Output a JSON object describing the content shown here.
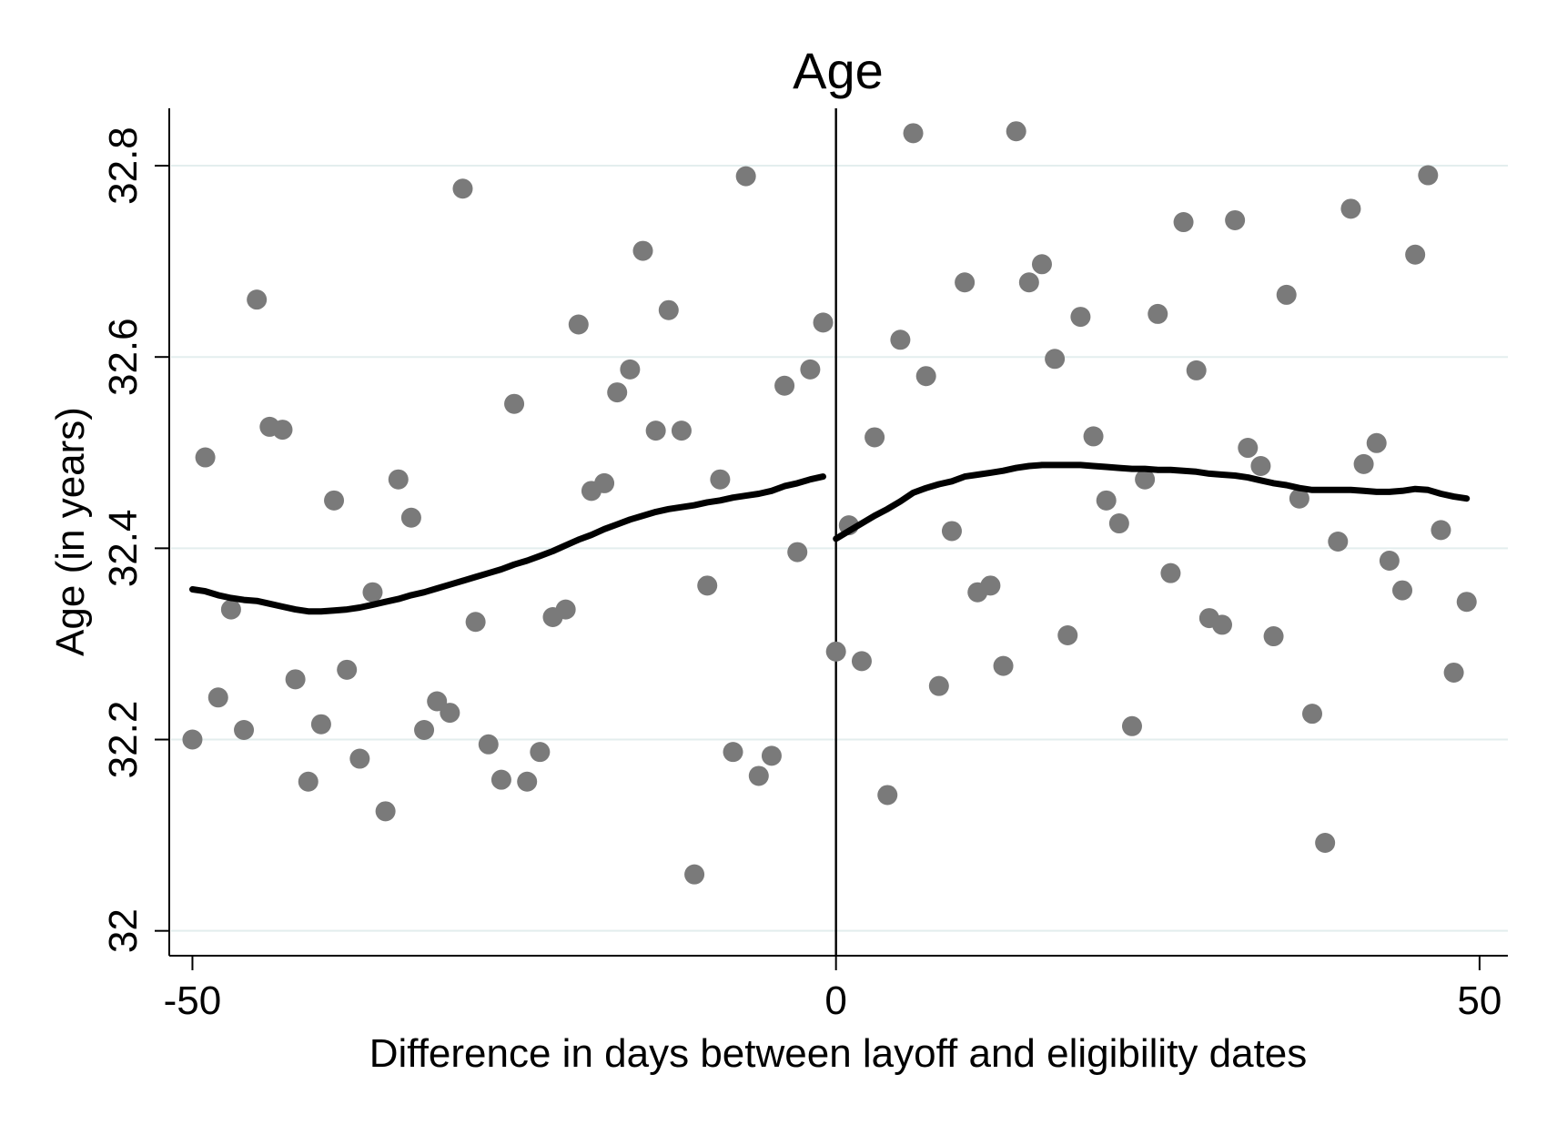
{
  "chart_data": {
    "type": "scatter",
    "title": "Age",
    "xlabel": "Difference in days between layoff and eligibility dates",
    "ylabel": "Age (in years)",
    "xlim": [
      -51.8,
      52.2
    ],
    "ylim": [
      31.974,
      32.86
    ],
    "x_ticks": [
      -50,
      0,
      50
    ],
    "x_tick_labels": [
      "-50",
      "0",
      "50"
    ],
    "y_ticks": [
      32.0,
      32.2,
      32.4,
      32.6,
      32.8
    ],
    "y_tick_labels": [
      "32",
      "32.2",
      "32.4",
      "32.6",
      "32.8"
    ],
    "grid": true,
    "cutoff_x": 0,
    "points": [
      {
        "x": -50,
        "y": 32.2
      },
      {
        "x": -49,
        "y": 32.495
      },
      {
        "x": -48,
        "y": 32.244
      },
      {
        "x": -47,
        "y": 32.336
      },
      {
        "x": -46,
        "y": 32.21
      },
      {
        "x": -45,
        "y": 32.66
      },
      {
        "x": -44,
        "y": 32.527
      },
      {
        "x": -43,
        "y": 32.524
      },
      {
        "x": -42,
        "y": 32.263
      },
      {
        "x": -41,
        "y": 32.156
      },
      {
        "x": -40,
        "y": 32.216
      },
      {
        "x": -39,
        "y": 32.45
      },
      {
        "x": -38,
        "y": 32.273
      },
      {
        "x": -37,
        "y": 32.18
      },
      {
        "x": -36,
        "y": 32.354
      },
      {
        "x": -35,
        "y": 32.125
      },
      {
        "x": -34,
        "y": 32.472
      },
      {
        "x": -33,
        "y": 32.432
      },
      {
        "x": -32,
        "y": 32.21
      },
      {
        "x": -31,
        "y": 32.24
      },
      {
        "x": -30,
        "y": 32.228
      },
      {
        "x": -29,
        "y": 32.776
      },
      {
        "x": -28,
        "y": 32.323
      },
      {
        "x": -27,
        "y": 32.195
      },
      {
        "x": -26,
        "y": 32.158
      },
      {
        "x": -25,
        "y": 32.551
      },
      {
        "x": -24,
        "y": 32.156
      },
      {
        "x": -23,
        "y": 32.187
      },
      {
        "x": -22,
        "y": 32.328
      },
      {
        "x": -21,
        "y": 32.336
      },
      {
        "x": -20,
        "y": 32.634
      },
      {
        "x": -19,
        "y": 32.46
      },
      {
        "x": -18,
        "y": 32.468
      },
      {
        "x": -17,
        "y": 32.563
      },
      {
        "x": -16,
        "y": 32.587
      },
      {
        "x": -15,
        "y": 32.711
      },
      {
        "x": -14,
        "y": 32.523
      },
      {
        "x": -13,
        "y": 32.649
      },
      {
        "x": -12,
        "y": 32.523
      },
      {
        "x": -11,
        "y": 32.059
      },
      {
        "x": -10,
        "y": 32.361
      },
      {
        "x": -9,
        "y": 32.472
      },
      {
        "x": -8,
        "y": 32.187
      },
      {
        "x": -7,
        "y": 32.789
      },
      {
        "x": -6,
        "y": 32.162
      },
      {
        "x": -5,
        "y": 32.183
      },
      {
        "x": -4,
        "y": 32.57
      },
      {
        "x": -3,
        "y": 32.396
      },
      {
        "x": -2,
        "y": 32.587
      },
      {
        "x": -1,
        "y": 32.636
      },
      {
        "x": 0,
        "y": 32.292
      },
      {
        "x": 1,
        "y": 32.424
      },
      {
        "x": 2,
        "y": 32.282
      },
      {
        "x": 3,
        "y": 32.516
      },
      {
        "x": 4,
        "y": 32.142
      },
      {
        "x": 5,
        "y": 32.618
      },
      {
        "x": 6,
        "y": 32.834
      },
      {
        "x": 7,
        "y": 32.58
      },
      {
        "x": 8,
        "y": 32.256
      },
      {
        "x": 9,
        "y": 32.418
      },
      {
        "x": 10,
        "y": 32.678
      },
      {
        "x": 11,
        "y": 32.354
      },
      {
        "x": 12,
        "y": 32.361
      },
      {
        "x": 13,
        "y": 32.277
      },
      {
        "x": 14,
        "y": 32.836
      },
      {
        "x": 15,
        "y": 32.678
      },
      {
        "x": 16,
        "y": 32.697
      },
      {
        "x": 17,
        "y": 32.598
      },
      {
        "x": 18,
        "y": 32.309
      },
      {
        "x": 19,
        "y": 32.642
      },
      {
        "x": 20,
        "y": 32.517
      },
      {
        "x": 21,
        "y": 32.45
      },
      {
        "x": 22,
        "y": 32.426
      },
      {
        "x": 23,
        "y": 32.214
      },
      {
        "x": 24,
        "y": 32.472
      },
      {
        "x": 25,
        "y": 32.645
      },
      {
        "x": 26,
        "y": 32.374
      },
      {
        "x": 27,
        "y": 32.741
      },
      {
        "x": 28,
        "y": 32.586
      },
      {
        "x": 29,
        "y": 32.327
      },
      {
        "x": 30,
        "y": 32.32
      },
      {
        "x": 31,
        "y": 32.743
      },
      {
        "x": 32,
        "y": 32.505
      },
      {
        "x": 33,
        "y": 32.486
      },
      {
        "x": 34,
        "y": 32.308
      },
      {
        "x": 35,
        "y": 32.665
      },
      {
        "x": 36,
        "y": 32.452
      },
      {
        "x": 37,
        "y": 32.227
      },
      {
        "x": 38,
        "y": 32.092
      },
      {
        "x": 39,
        "y": 32.407
      },
      {
        "x": 40,
        "y": 32.755
      },
      {
        "x": 41,
        "y": 32.488
      },
      {
        "x": 42,
        "y": 32.51
      },
      {
        "x": 43,
        "y": 32.387
      },
      {
        "x": 44,
        "y": 32.356
      },
      {
        "x": 45,
        "y": 32.707
      },
      {
        "x": 46,
        "y": 32.79
      },
      {
        "x": 47,
        "y": 32.419
      },
      {
        "x": 48,
        "y": 32.27
      },
      {
        "x": 49,
        "y": 32.344
      }
    ],
    "fit_left": [
      {
        "x": -50,
        "y": 32.357
      },
      {
        "x": -49,
        "y": 32.355
      },
      {
        "x": -48,
        "y": 32.351
      },
      {
        "x": -47,
        "y": 32.348
      },
      {
        "x": -46,
        "y": 32.346
      },
      {
        "x": -45,
        "y": 32.345
      },
      {
        "x": -44,
        "y": 32.342
      },
      {
        "x": -43,
        "y": 32.339
      },
      {
        "x": -42,
        "y": 32.336
      },
      {
        "x": -41,
        "y": 32.334
      },
      {
        "x": -40,
        "y": 32.334
      },
      {
        "x": -39,
        "y": 32.335
      },
      {
        "x": -38,
        "y": 32.336
      },
      {
        "x": -37,
        "y": 32.338
      },
      {
        "x": -36,
        "y": 32.341
      },
      {
        "x": -35,
        "y": 32.344
      },
      {
        "x": -34,
        "y": 32.347
      },
      {
        "x": -33,
        "y": 32.351
      },
      {
        "x": -32,
        "y": 32.354
      },
      {
        "x": -31,
        "y": 32.358
      },
      {
        "x": -30,
        "y": 32.362
      },
      {
        "x": -29,
        "y": 32.366
      },
      {
        "x": -28,
        "y": 32.37
      },
      {
        "x": -27,
        "y": 32.374
      },
      {
        "x": -26,
        "y": 32.378
      },
      {
        "x": -25,
        "y": 32.383
      },
      {
        "x": -24,
        "y": 32.387
      },
      {
        "x": -23,
        "y": 32.392
      },
      {
        "x": -22,
        "y": 32.397
      },
      {
        "x": -21,
        "y": 32.403
      },
      {
        "x": -20,
        "y": 32.409
      },
      {
        "x": -19,
        "y": 32.414
      },
      {
        "x": -18,
        "y": 32.42
      },
      {
        "x": -17,
        "y": 32.425
      },
      {
        "x": -16,
        "y": 32.43
      },
      {
        "x": -15,
        "y": 32.434
      },
      {
        "x": -14,
        "y": 32.438
      },
      {
        "x": -13,
        "y": 32.441
      },
      {
        "x": -12,
        "y": 32.443
      },
      {
        "x": -11,
        "y": 32.445
      },
      {
        "x": -10,
        "y": 32.448
      },
      {
        "x": -9,
        "y": 32.45
      },
      {
        "x": -8,
        "y": 32.453
      },
      {
        "x": -7,
        "y": 32.455
      },
      {
        "x": -6,
        "y": 32.457
      },
      {
        "x": -5,
        "y": 32.46
      },
      {
        "x": -4,
        "y": 32.465
      },
      {
        "x": -3,
        "y": 32.468
      },
      {
        "x": -2,
        "y": 32.472
      },
      {
        "x": -1,
        "y": 32.475
      }
    ],
    "fit_right": [
      {
        "x": 0,
        "y": 32.41
      },
      {
        "x": 1,
        "y": 32.418
      },
      {
        "x": 2,
        "y": 32.426
      },
      {
        "x": 3,
        "y": 32.434
      },
      {
        "x": 4,
        "y": 32.441
      },
      {
        "x": 5,
        "y": 32.449
      },
      {
        "x": 6,
        "y": 32.458
      },
      {
        "x": 7,
        "y": 32.463
      },
      {
        "x": 8,
        "y": 32.467
      },
      {
        "x": 9,
        "y": 32.47
      },
      {
        "x": 10,
        "y": 32.475
      },
      {
        "x": 11,
        "y": 32.477
      },
      {
        "x": 12,
        "y": 32.479
      },
      {
        "x": 13,
        "y": 32.481
      },
      {
        "x": 14,
        "y": 32.484
      },
      {
        "x": 15,
        "y": 32.486
      },
      {
        "x": 16,
        "y": 32.487
      },
      {
        "x": 17,
        "y": 32.487
      },
      {
        "x": 18,
        "y": 32.487
      },
      {
        "x": 19,
        "y": 32.487
      },
      {
        "x": 20,
        "y": 32.486
      },
      {
        "x": 21,
        "y": 32.485
      },
      {
        "x": 22,
        "y": 32.484
      },
      {
        "x": 23,
        "y": 32.483
      },
      {
        "x": 24,
        "y": 32.483
      },
      {
        "x": 25,
        "y": 32.482
      },
      {
        "x": 26,
        "y": 32.482
      },
      {
        "x": 27,
        "y": 32.481
      },
      {
        "x": 28,
        "y": 32.48
      },
      {
        "x": 29,
        "y": 32.478
      },
      {
        "x": 30,
        "y": 32.477
      },
      {
        "x": 31,
        "y": 32.476
      },
      {
        "x": 32,
        "y": 32.474
      },
      {
        "x": 33,
        "y": 32.471
      },
      {
        "x": 34,
        "y": 32.468
      },
      {
        "x": 35,
        "y": 32.466
      },
      {
        "x": 36,
        "y": 32.463
      },
      {
        "x": 37,
        "y": 32.461
      },
      {
        "x": 38,
        "y": 32.461
      },
      {
        "x": 39,
        "y": 32.461
      },
      {
        "x": 40,
        "y": 32.461
      },
      {
        "x": 41,
        "y": 32.46
      },
      {
        "x": 42,
        "y": 32.459
      },
      {
        "x": 43,
        "y": 32.459
      },
      {
        "x": 44,
        "y": 32.46
      },
      {
        "x": 45,
        "y": 32.462
      },
      {
        "x": 46,
        "y": 32.461
      },
      {
        "x": 47,
        "y": 32.457
      },
      {
        "x": 48,
        "y": 32.454
      },
      {
        "x": 49,
        "y": 32.452
      }
    ],
    "colors": {
      "points": "#7a7a7a",
      "fit_line": "#000000",
      "gridline": "#e3eeee"
    }
  }
}
